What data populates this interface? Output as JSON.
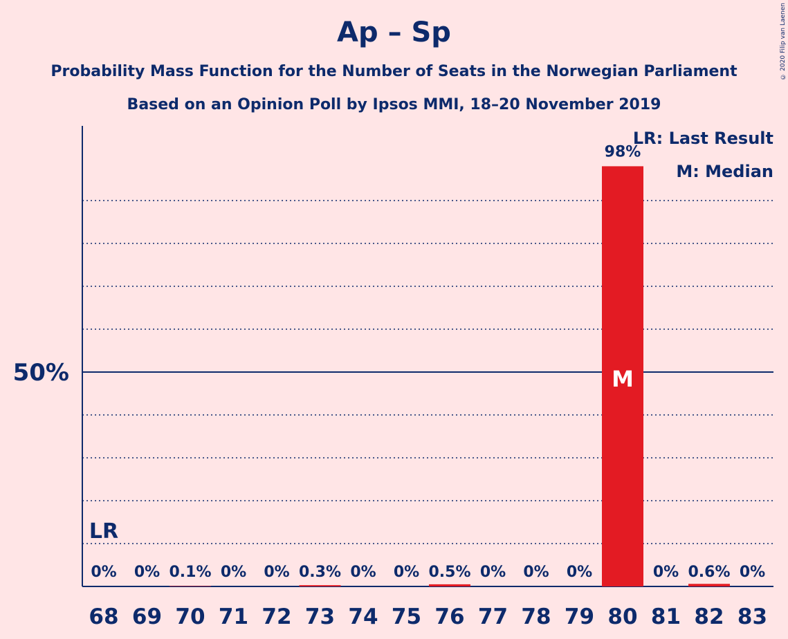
{
  "chart_data": {
    "type": "bar",
    "title": "Ap – Sp",
    "subtitle": "Probability Mass Function for the Number of Seats in the Norwegian Parliament",
    "subtitle2": "Based on an Opinion Poll by Ipsos MMI, 18–20 November 2019",
    "copyright": "© 2020 Filip van Laenen",
    "categories": [
      "68",
      "69",
      "70",
      "71",
      "72",
      "73",
      "74",
      "75",
      "76",
      "77",
      "78",
      "79",
      "80",
      "81",
      "82",
      "83"
    ],
    "values": [
      0,
      0,
      0.1,
      0,
      0,
      0.3,
      0,
      0,
      0.5,
      0,
      0,
      0,
      98,
      0,
      0.6,
      0
    ],
    "value_labels": [
      "0%",
      "0%",
      "0.1%",
      "0%",
      "0%",
      "0.3%",
      "0%",
      "0%",
      "0.5%",
      "0%",
      "0%",
      "0%",
      "98%",
      "0%",
      "0.6%",
      "0%"
    ],
    "ylim": [
      0,
      100
    ],
    "y_tick_label": "50%",
    "y_tick_value": 50,
    "gridlines": [
      10,
      20,
      30,
      40,
      60,
      70,
      80,
      90
    ],
    "last_result": {
      "seat": "68",
      "marker": "LR"
    },
    "median": {
      "seat": "80",
      "marker": "M"
    },
    "legend": {
      "lr": "LR: Last Result",
      "m": "M: Median",
      "placement": "top-right"
    },
    "bar_color": "#e31b23",
    "text_color": "#0d2a6b",
    "background": "#ffe5e6"
  }
}
